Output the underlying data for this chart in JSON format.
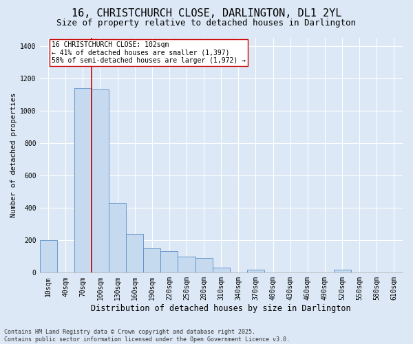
{
  "title_line1": "16, CHRISTCHURCH CLOSE, DARLINGTON, DL1 2YL",
  "title_line2": "Size of property relative to detached houses in Darlington",
  "xlabel": "Distribution of detached houses by size in Darlington",
  "ylabel": "Number of detached properties",
  "categories": [
    "10sqm",
    "40sqm",
    "70sqm",
    "100sqm",
    "130sqm",
    "160sqm",
    "190sqm",
    "220sqm",
    "250sqm",
    "280sqm",
    "310sqm",
    "340sqm",
    "370sqm",
    "400sqm",
    "430sqm",
    "460sqm",
    "490sqm",
    "520sqm",
    "550sqm",
    "580sqm",
    "610sqm"
  ],
  "values": [
    200,
    0,
    1140,
    1130,
    430,
    240,
    150,
    135,
    100,
    90,
    30,
    0,
    20,
    0,
    0,
    0,
    0,
    20,
    0,
    0,
    0
  ],
  "bar_color": "#c5d9ef",
  "bar_edge_color": "#5b8ec4",
  "vline_x": 2.5,
  "vline_color": "#cc0000",
  "annotation_text": "16 CHRISTCHURCH CLOSE: 102sqm\n← 41% of detached houses are smaller (1,397)\n58% of semi-detached houses are larger (1,972) →",
  "annotation_box_color": "white",
  "annotation_box_edge_color": "#cc0000",
  "ylim": [
    0,
    1450
  ],
  "yticks": [
    0,
    200,
    400,
    600,
    800,
    1000,
    1200,
    1400
  ],
  "background_color": "#dce8f5",
  "plot_bg_color": "#dce8f5",
  "footer_text": "Contains HM Land Registry data © Crown copyright and database right 2025.\nContains public sector information licensed under the Open Government Licence v3.0.",
  "title_fontsize": 11,
  "subtitle_fontsize": 9,
  "grid_color": "#ffffff",
  "annotation_fontsize": 7,
  "ylabel_fontsize": 7.5,
  "xlabel_fontsize": 8.5,
  "tick_fontsize": 7,
  "footer_fontsize": 6
}
